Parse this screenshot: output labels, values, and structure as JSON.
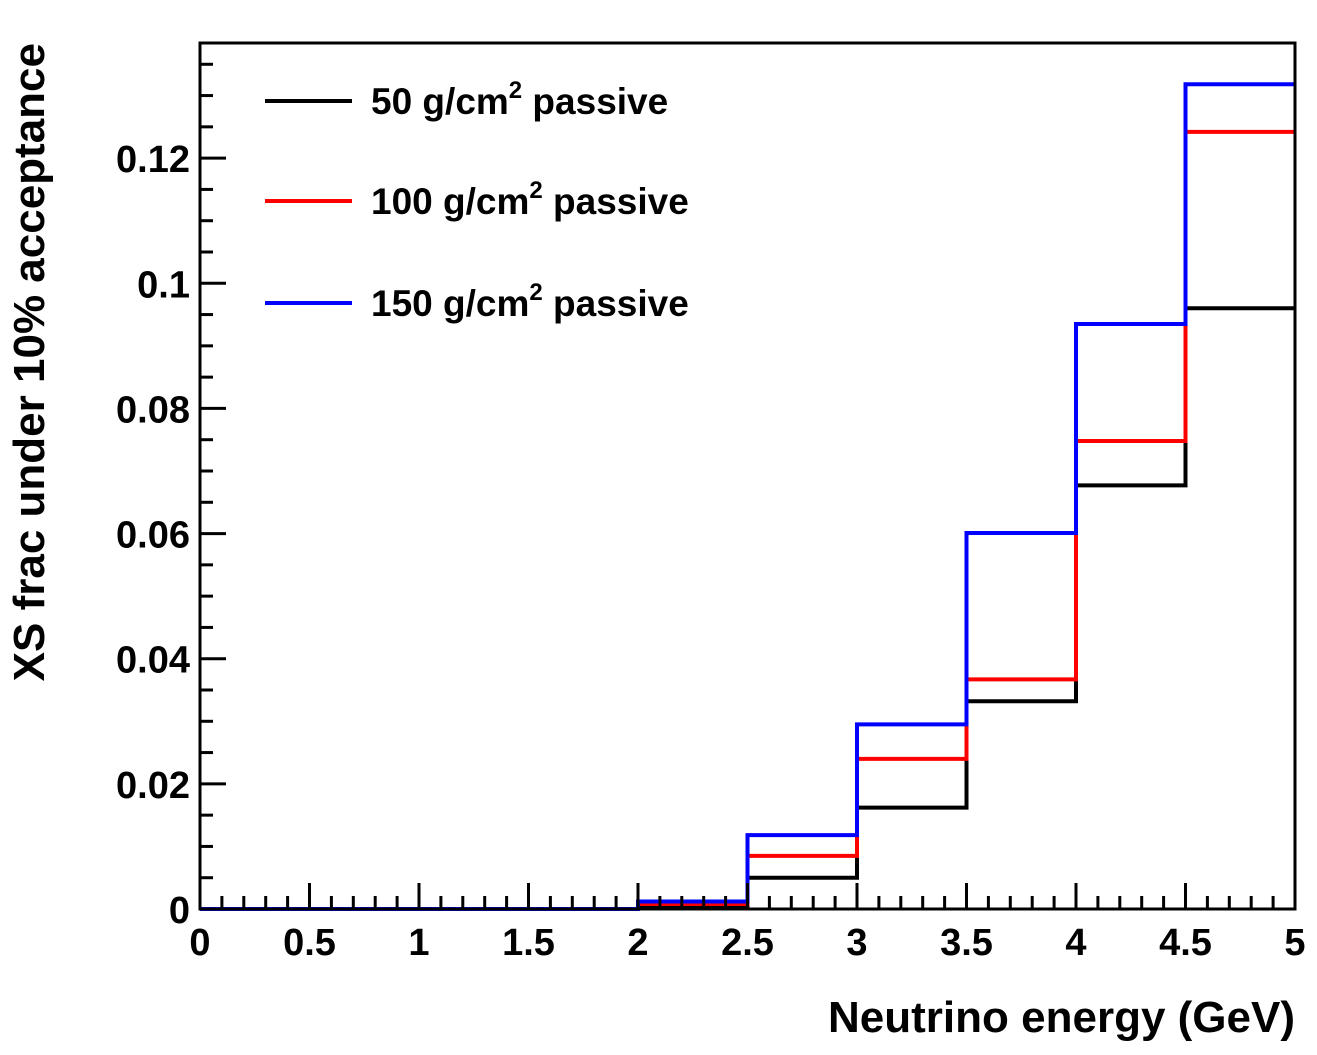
{
  "chart_data": {
    "type": "line",
    "subtype": "step-histogram",
    "title": "",
    "xlabel": "Neutrino energy (GeV)",
    "ylabel": "XS frac under 10% acceptance",
    "xlim": [
      0,
      5
    ],
    "ylim": [
      0,
      0.1384
    ],
    "grid": false,
    "legend_position": "top-left",
    "bin_edges": [
      0,
      0.5,
      1,
      1.5,
      2,
      2.5,
      3,
      3.5,
      4,
      4.5,
      5
    ],
    "x_ticks": [
      "0",
      "0.5",
      "1",
      "1.5",
      "2",
      "2.5",
      "3",
      "3.5",
      "4",
      "4.5",
      "5"
    ],
    "y_ticks": [
      "0",
      "0.02",
      "0.04",
      "0.06",
      "0.08",
      "0.1",
      "0.12"
    ],
    "series": [
      {
        "name_prefix": "50 g/cm",
        "name_sup": "2",
        "name_suffix": " passive",
        "color": "#000000",
        "values": [
          0,
          0,
          0,
          0,
          0.0005,
          0.005,
          0.0162,
          0.0332,
          0.0677,
          0.096
        ]
      },
      {
        "name_prefix": "100 g/cm",
        "name_sup": "2",
        "name_suffix": " passive",
        "color": "#ff0000",
        "values": [
          0,
          0,
          0,
          0,
          0.0008,
          0.0085,
          0.024,
          0.0367,
          0.0748,
          0.1242
        ]
      },
      {
        "name_prefix": "150 g/cm",
        "name_sup": "2",
        "name_suffix": " passive",
        "color": "#0000ff",
        "values": [
          0,
          0,
          0,
          0,
          0.0012,
          0.0118,
          0.0295,
          0.0601,
          0.0935,
          0.1318
        ]
      }
    ]
  }
}
